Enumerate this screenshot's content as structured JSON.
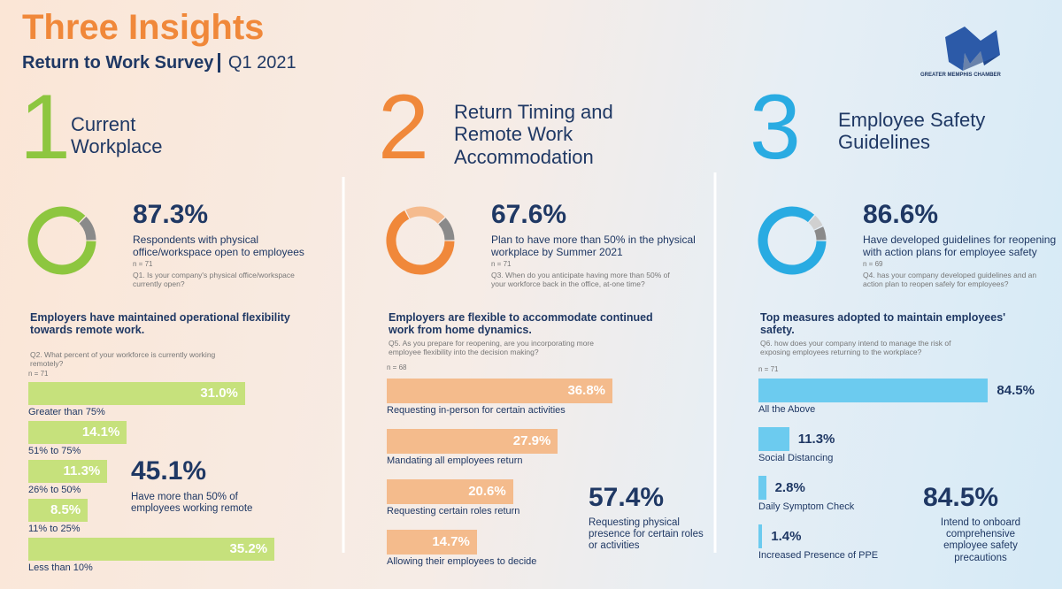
{
  "header": {
    "title": "Three Insights",
    "subtitle": "Return to Work Survey",
    "period": "Q1 2021",
    "logo_text": "GREATER MEMPHIS CHAMBER"
  },
  "sections": [
    {
      "number": "1",
      "heading": "Current Workplace",
      "color": "#8dc63f"
    },
    {
      "number": "2",
      "heading": "Return Timing and Remote Work Accommodation",
      "color": "#f0883a"
    },
    {
      "number": "3",
      "heading": "Employee Safety Guidelines",
      "color": "#29abe2"
    }
  ],
  "chart_data": [
    {
      "type": "pie",
      "values": [
        87.3,
        12.7
      ],
      "value_labels": [
        "87.3%",
        null
      ],
      "colors": [
        "#8dc63f",
        "#8a8a8a"
      ],
      "text": "Respondents with physical office/workspace open to employees",
      "n": "n = 71",
      "question": "Q1. Is your company's physical office/workspace currently open?"
    },
    {
      "type": "bar",
      "title": "Employers have maintained operational flexibility towards remote work.",
      "question": "Q2. What percent of your workforce is currently working remotely?",
      "n": "n = 71",
      "categories": [
        "Greater than 75%",
        "51% to 75%",
        "26% to 50%",
        "11% to 25%",
        "Less than 10%"
      ],
      "values": [
        31.0,
        14.1,
        11.3,
        8.5,
        35.2
      ],
      "value_labels": [
        "31.0%",
        "14.1%",
        "11.3%",
        "8.5%",
        "35.2%"
      ],
      "color": "#c6e17c",
      "label_position": "inside",
      "callout": "45.1%",
      "callout_text": "Have more than 50% of employees working remote"
    },
    {
      "type": "pie",
      "values": [
        67.6,
        20.4,
        12.0
      ],
      "value_labels": [
        "67.6%",
        null,
        null
      ],
      "colors": [
        "#f0883a",
        "#f5bb8e",
        "#8a8a8a"
      ],
      "text": "Plan to have more than 50% in the physical workplace by Summer 2021",
      "n": "n = 71",
      "question": "Q3. When do you anticipate having more than 50% of your workforce back in the office, at-one time?"
    },
    {
      "type": "bar",
      "title": "Employers are flexible to accommodate continued work from home dynamics.",
      "question": "Q5. As you prepare for reopening, are you incorporating more employee flexibility into the decision making?",
      "n": "n = 68",
      "categories": [
        "Requesting in-person for certain activities",
        "Mandating all employees return",
        "Requesting certain roles return",
        "Allowing their employees to decide"
      ],
      "values": [
        36.8,
        27.9,
        20.6,
        14.7
      ],
      "value_labels": [
        "36.8%",
        "27.9%",
        "20.6%",
        "14.7%"
      ],
      "color": "#f4bb8c",
      "label_position": "inside",
      "callout": "57.4%",
      "callout_text": "Requesting physical presence for certain roles or activities"
    },
    {
      "type": "pie",
      "values": [
        86.6,
        6.4,
        7.0
      ],
      "value_labels": [
        "86.6%",
        null,
        null
      ],
      "colors": [
        "#29abe2",
        "#d0d0d0",
        "#8a8a8a"
      ],
      "text": "Have developed guidelines for reopening with action plans for employee safety",
      "n": "n = 69",
      "question": "Q4. has your company developed guidelines and an action plan to reopen safely for employees?"
    },
    {
      "type": "bar",
      "title": "Top measures adopted to maintain employees' safety.",
      "question": "Q6. how does your company intend to manage the risk of exposing employees returning to the workplace?",
      "n": "n = 71",
      "categories": [
        "All the Above",
        "Social Distancing",
        "Daily Symptom Check",
        "Increased Presence of PPE"
      ],
      "values": [
        84.5,
        11.3,
        2.8,
        1.4
      ],
      "value_labels": [
        "84.5%",
        "11.3%",
        "2.8%",
        "1.4%"
      ],
      "color": "#6ccbef",
      "label_position": "outside",
      "callout": "84.5%",
      "callout_text": "Intend to onboard comprehensive employee safety precautions"
    }
  ]
}
